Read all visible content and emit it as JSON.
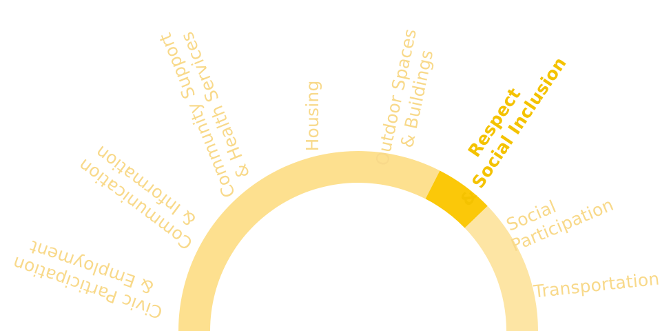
{
  "colors": {
    "ring": "#fde08f",
    "ring_light": "#fde5a4",
    "active_segment": "#fbc809",
    "label": "#f8d98a",
    "label_active": "#f4c200"
  },
  "domains": [
    {
      "id": "civic",
      "line1": "Civic Participation",
      "line2": "& Employment",
      "active": false
    },
    {
      "id": "communication",
      "line1": "Communication",
      "line2": "& Information",
      "active": false
    },
    {
      "id": "community",
      "line1": "Community Support",
      "line2": "& Health Services",
      "active": false
    },
    {
      "id": "housing",
      "line1": "Housing",
      "line2": "",
      "active": false
    },
    {
      "id": "outdoor",
      "line1": "Outdoor Spaces",
      "line2": "& Buildings",
      "active": false
    },
    {
      "id": "respect",
      "line1": "Respect",
      "line2": "& Social Inclusion",
      "active": true
    },
    {
      "id": "social",
      "line1": "Social",
      "line2": "Participation",
      "active": false
    },
    {
      "id": "transportation",
      "line1": "Transportation",
      "line2": "",
      "active": false
    }
  ]
}
